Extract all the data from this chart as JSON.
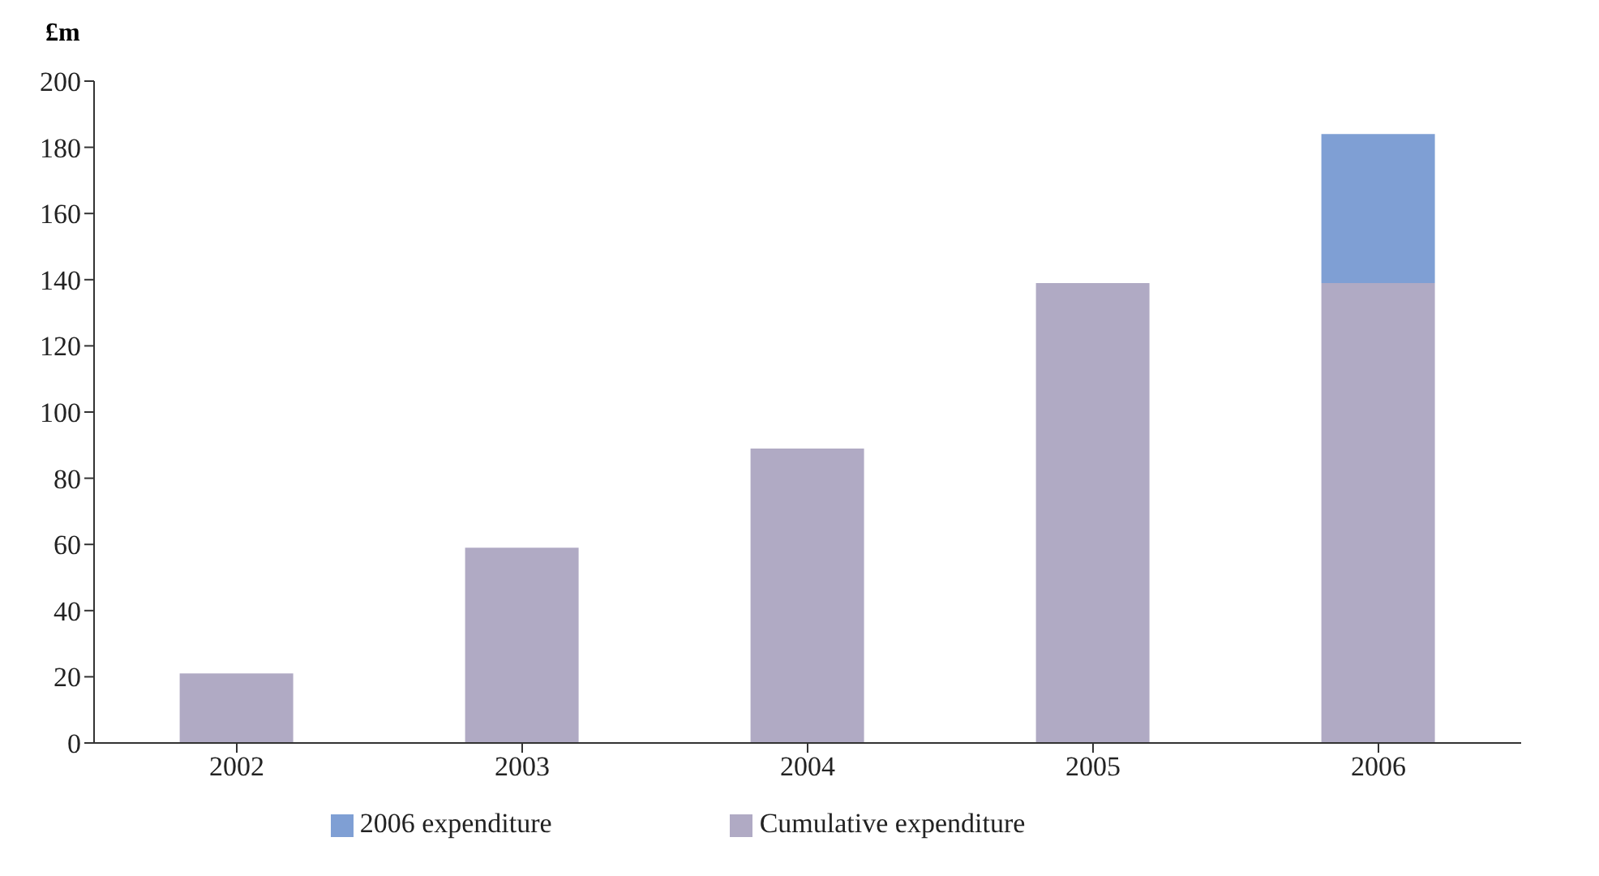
{
  "chart_data": {
    "type": "bar",
    "ylabel": "£m",
    "categories": [
      "2002",
      "2003",
      "2004",
      "2005",
      "2006"
    ],
    "stacked": true,
    "series": [
      {
        "name": "Cumulative expenditure",
        "color": "#b0aac4",
        "values": [
          21,
          59,
          89,
          139,
          139
        ]
      },
      {
        "name": "2006 expenditure",
        "color": "#7f9fd4",
        "values": [
          null,
          null,
          null,
          null,
          45
        ]
      }
    ],
    "ylim": [
      0,
      200
    ],
    "yticks": [
      0,
      20,
      40,
      60,
      80,
      100,
      120,
      140,
      160,
      180,
      200
    ],
    "grid": false,
    "legend": "bottom"
  }
}
